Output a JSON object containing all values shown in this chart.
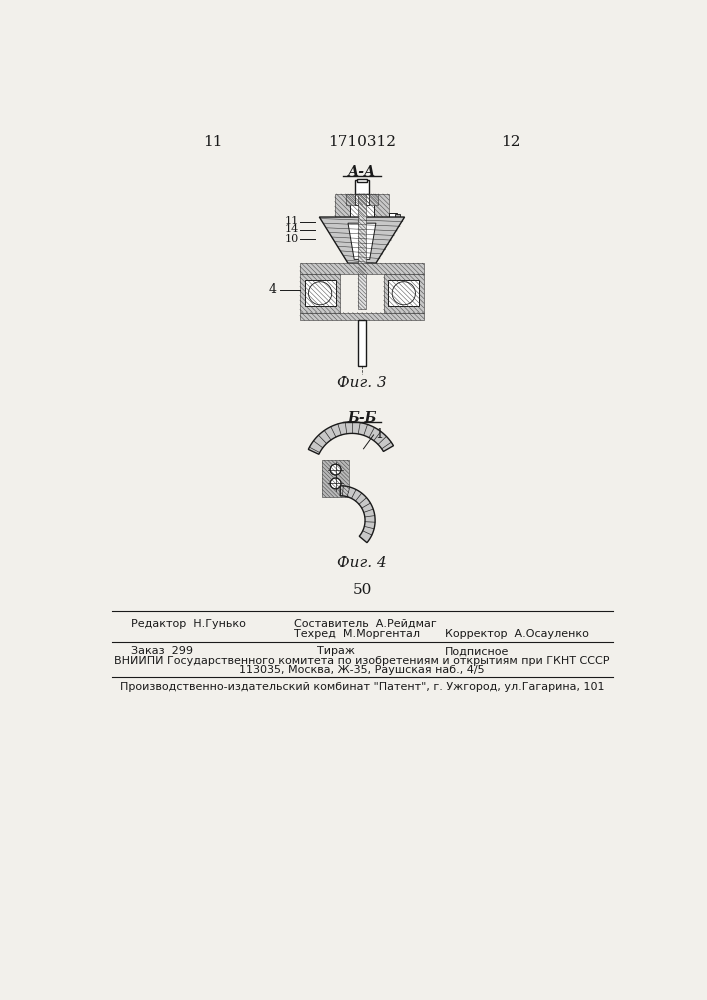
{
  "bg_color": "#f2f0eb",
  "line_color": "#1a1a1a",
  "page_num_left": "11",
  "page_num_center": "1710312",
  "page_num_right": "12",
  "fig3_label": "А-А",
  "fig3_caption": "Фиг. 3",
  "fig4_label": "Б-Б",
  "fig4_caption": "Фиг. 4",
  "page_number_bottom": "50",
  "footer_line1_left": "Редактор  Н.Гунько",
  "footer_line1_center": "Составитель  А.Рейдмаг",
  "footer_line2_center": "Техред  М.Моргентал",
  "footer_line2_right": "Корректор  А.Осауленко",
  "footer_line3_left": "Заказ  299",
  "footer_line3_center": "Тираж",
  "footer_line3_right": "Подписное",
  "footer_line4": "ВНИИПИ Государственного комитета по изобретениям и открытиям при ГКНТ СССР",
  "footer_line5": "113035, Москва, Ж-35, Раушская наб., 4/5",
  "footer_line6": "Производственно-издательский комбинат \"Патент\", г. Ужгород, ул.Гагарина, 101"
}
